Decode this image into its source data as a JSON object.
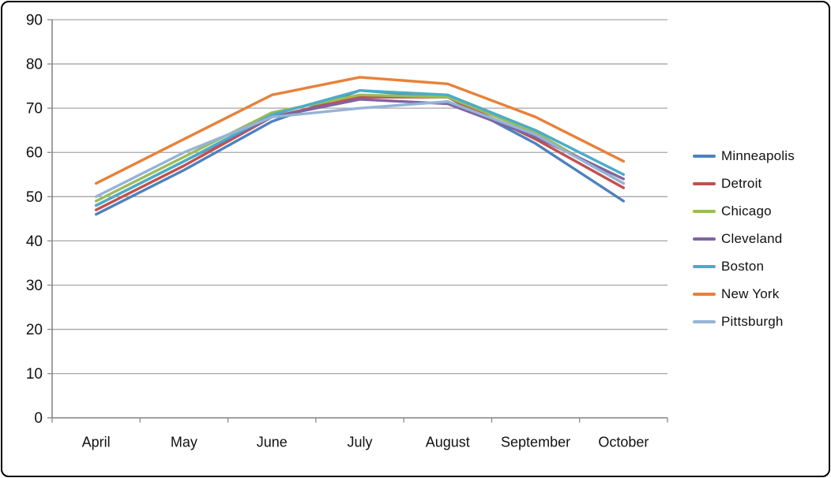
{
  "chart_data": {
    "type": "line",
    "title": "",
    "xlabel": "",
    "ylabel": "",
    "categories": [
      "April",
      "May",
      "June",
      "July",
      "August",
      "September",
      "October"
    ],
    "series": [
      {
        "name": "Minneapolis",
        "color": "#4F81BD",
        "values": [
          46,
          56,
          67,
          74,
          72.5,
          62,
          49
        ]
      },
      {
        "name": "Detroit",
        "color": "#C0504D",
        "values": [
          47,
          57,
          68,
          72.5,
          72.5,
          63,
          52
        ]
      },
      {
        "name": "Chicago",
        "color": "#9BBB59",
        "values": [
          49,
          59,
          69,
          73,
          72.5,
          64.5,
          53
        ]
      },
      {
        "name": "Cleveland",
        "color": "#8064A2",
        "values": [
          48,
          58,
          68,
          72,
          71,
          63.5,
          54
        ]
      },
      {
        "name": "Boston",
        "color": "#4BACC6",
        "values": [
          48,
          58,
          68.5,
          74,
          73,
          65,
          55
        ]
      },
      {
        "name": "New York",
        "color": "#E8813A",
        "values": [
          53,
          63,
          73,
          77,
          75.5,
          68,
          58
        ]
      },
      {
        "name": "Pittsburgh",
        "color": "#95B3D7",
        "values": [
          50,
          60,
          68,
          70,
          71.5,
          64,
          53
        ]
      }
    ],
    "ylim": [
      0,
      90
    ],
    "y_ticks": [
      0,
      10,
      20,
      30,
      40,
      50,
      60,
      70,
      80,
      90
    ],
    "grid": "horizontal",
    "legend_position": "right"
  },
  "style_colors": {
    "gridline": "#A6A6A6",
    "axis": "#898989",
    "label_text": "#111111",
    "frame_border": "#000000",
    "background": "#FFFFFF"
  }
}
